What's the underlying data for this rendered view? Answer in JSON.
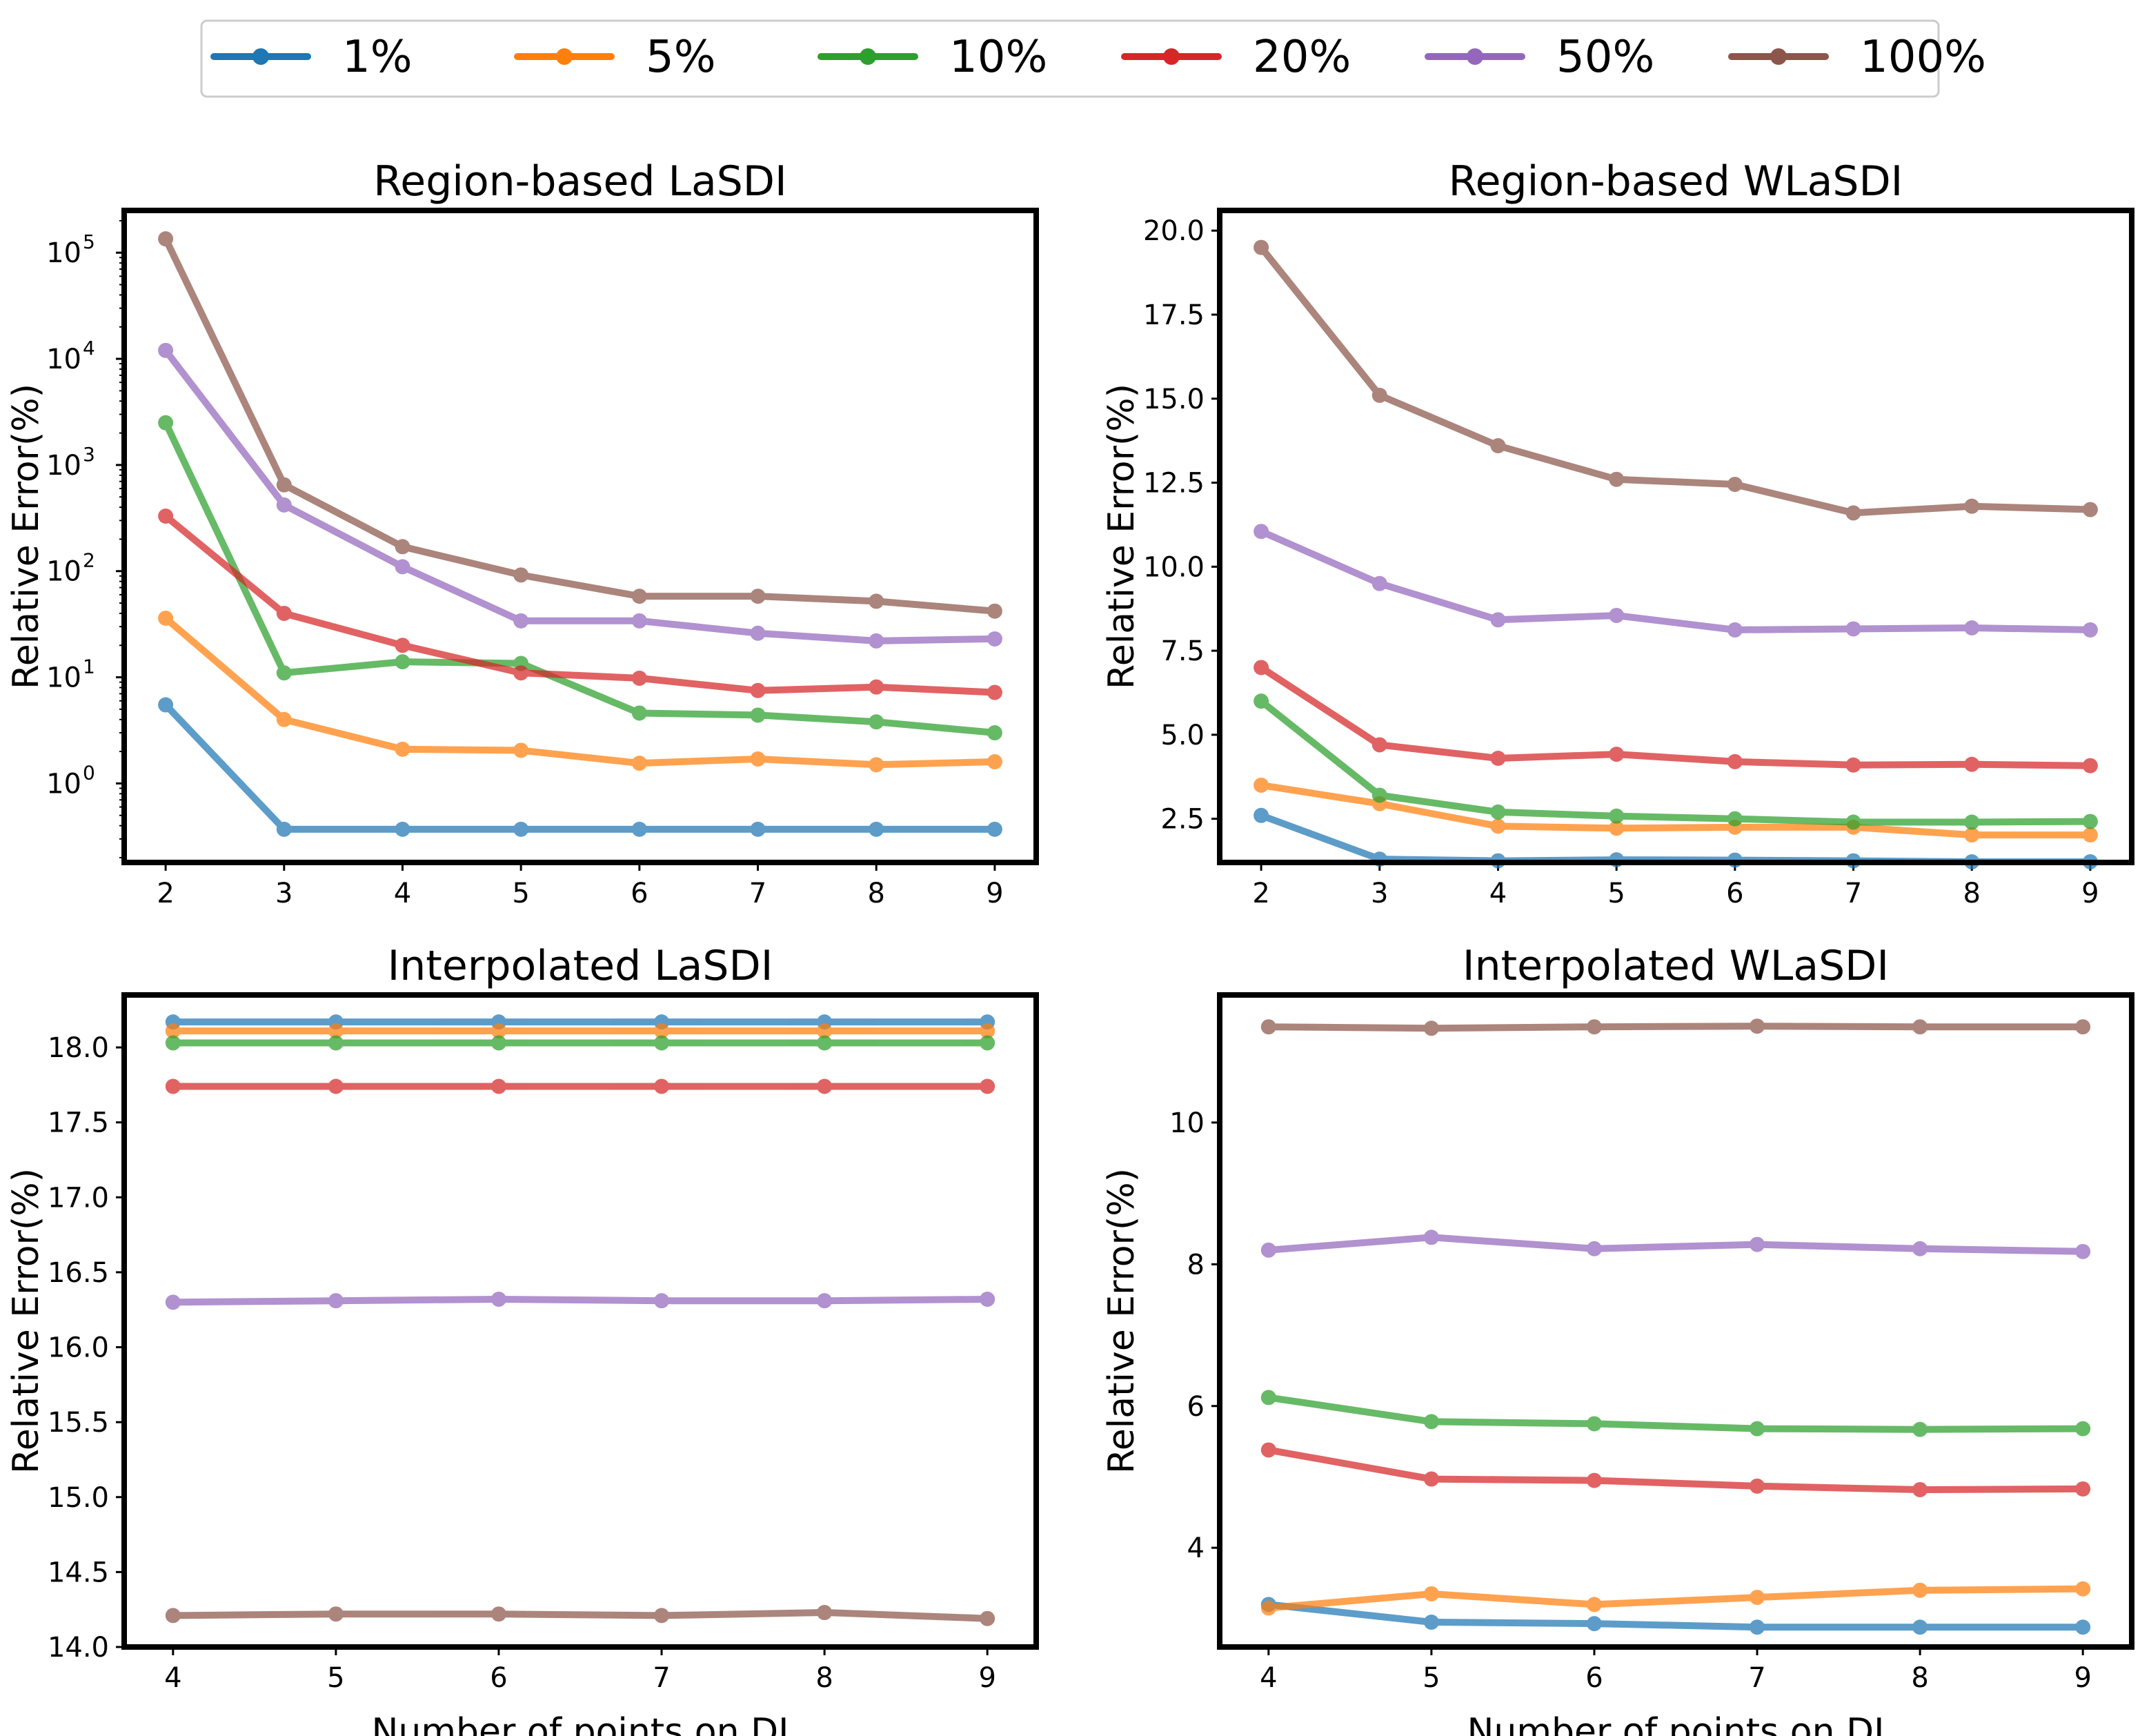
{
  "legend": {
    "entries": [
      "1%",
      "5%",
      "10%",
      "20%",
      "50%",
      "100%"
    ],
    "colors": [
      "#1f77b4",
      "#ff7f0e",
      "#2ca02c",
      "#d62728",
      "#9467bd",
      "#8c564b"
    ]
  },
  "chart_data": [
    {
      "type": "line",
      "title": "Region-based LaSDI",
      "xlabel": "",
      "ylabel": "Relative Error(%)",
      "yscale": "log",
      "ylim": [
        0.18,
        250000
      ],
      "xlim": [
        1.65,
        9.35
      ],
      "xticks": [
        2,
        3,
        4,
        5,
        6,
        7,
        8,
        9
      ],
      "yticks": [
        1,
        10,
        100,
        1000,
        10000,
        100000
      ],
      "yticklabels": [
        {
          "base": "10",
          "exp": "0"
        },
        {
          "base": "10",
          "exp": "1"
        },
        {
          "base": "10",
          "exp": "2"
        },
        {
          "base": "10",
          "exp": "3"
        },
        {
          "base": "10",
          "exp": "4"
        },
        {
          "base": "10",
          "exp": "5"
        }
      ],
      "x": [
        2,
        3,
        4,
        5,
        6,
        7,
        8,
        9
      ],
      "series": [
        {
          "name": "1%",
          "values": [
            5.5,
            0.37,
            0.37,
            0.37,
            0.37,
            0.37,
            0.37,
            0.37
          ]
        },
        {
          "name": "5%",
          "values": [
            36,
            4.0,
            2.1,
            2.05,
            1.55,
            1.7,
            1.5,
            1.6
          ]
        },
        {
          "name": "10%",
          "values": [
            2500,
            11,
            14,
            13.5,
            4.6,
            4.4,
            3.8,
            3.0
          ]
        },
        {
          "name": "20%",
          "values": [
            330,
            40,
            20,
            11,
            9.8,
            7.5,
            8.1,
            7.2
          ]
        },
        {
          "name": "50%",
          "values": [
            12000,
            420,
            110,
            34,
            34,
            26,
            22,
            23
          ]
        },
        {
          "name": "100%",
          "values": [
            135000,
            650,
            170,
            92,
            58,
            58,
            52,
            42
          ]
        }
      ]
    },
    {
      "type": "line",
      "title": "Region-based WLaSDI",
      "xlabel": "",
      "ylabel": "Relative Error(%)",
      "yscale": "linear",
      "ylim": [
        1.2,
        20.6
      ],
      "xlim": [
        1.65,
        9.35
      ],
      "xticks": [
        2,
        3,
        4,
        5,
        6,
        7,
        8,
        9
      ],
      "yticks": [
        2.5,
        5.0,
        7.5,
        10.0,
        12.5,
        15.0,
        17.5,
        20.0
      ],
      "yticklabels": [
        "2.5",
        "5.0",
        "7.5",
        "10.0",
        "12.5",
        "15.0",
        "17.5",
        "20.0"
      ],
      "x": [
        2,
        3,
        4,
        5,
        6,
        7,
        8,
        9
      ],
      "series": [
        {
          "name": "1%",
          "values": [
            2.6,
            1.3,
            1.25,
            1.28,
            1.27,
            1.25,
            1.22,
            1.22
          ]
        },
        {
          "name": "5%",
          "values": [
            3.5,
            2.95,
            2.28,
            2.22,
            2.25,
            2.25,
            2.02,
            2.02
          ]
        },
        {
          "name": "10%",
          "values": [
            6.0,
            3.2,
            2.7,
            2.58,
            2.5,
            2.4,
            2.4,
            2.42
          ]
        },
        {
          "name": "20%",
          "values": [
            7.0,
            4.7,
            4.3,
            4.42,
            4.2,
            4.1,
            4.12,
            4.08
          ]
        },
        {
          "name": "50%",
          "values": [
            11.05,
            9.5,
            8.42,
            8.55,
            8.12,
            8.15,
            8.18,
            8.12
          ]
        },
        {
          "name": "100%",
          "values": [
            19.5,
            15.1,
            13.6,
            12.6,
            12.45,
            11.6,
            11.8,
            11.7
          ]
        }
      ]
    },
    {
      "type": "line",
      "title": "Interpolated LaSDI",
      "xlabel": "Number of points on DI",
      "ylabel": "Relative Error(%)",
      "yscale": "linear",
      "ylim": [
        14.0,
        18.35
      ],
      "xlim": [
        3.7,
        9.3
      ],
      "xticks": [
        4,
        5,
        6,
        7,
        8,
        9
      ],
      "yticks": [
        14.0,
        14.5,
        15.0,
        15.5,
        16.0,
        16.5,
        17.0,
        17.5,
        18.0
      ],
      "yticklabels": [
        "14.0",
        "14.5",
        "15.0",
        "15.5",
        "16.0",
        "16.5",
        "17.0",
        "17.5",
        "18.0"
      ],
      "x": [
        4,
        5,
        6,
        7,
        8,
        9
      ],
      "series": [
        {
          "name": "1%",
          "values": [
            18.17,
            18.17,
            18.17,
            18.17,
            18.17,
            18.17
          ]
        },
        {
          "name": "5%",
          "values": [
            18.11,
            18.11,
            18.11,
            18.11,
            18.11,
            18.11
          ]
        },
        {
          "name": "10%",
          "values": [
            18.03,
            18.03,
            18.03,
            18.03,
            18.03,
            18.03
          ]
        },
        {
          "name": "20%",
          "values": [
            17.74,
            17.74,
            17.74,
            17.74,
            17.74,
            17.74
          ]
        },
        {
          "name": "50%",
          "values": [
            16.3,
            16.31,
            16.32,
            16.31,
            16.31,
            16.32
          ]
        },
        {
          "name": "100%",
          "values": [
            14.21,
            14.22,
            14.22,
            14.21,
            14.23,
            14.19
          ]
        }
      ]
    },
    {
      "type": "line",
      "title": "Interpolated WLaSDI",
      "xlabel": "Number of points on DI",
      "ylabel": "Relative Error(%)",
      "yscale": "linear",
      "ylim": [
        2.6,
        11.8
      ],
      "xlim": [
        3.7,
        9.3
      ],
      "xticks": [
        4,
        5,
        6,
        7,
        8,
        9
      ],
      "yticks": [
        4,
        6,
        8,
        10
      ],
      "yticklabels": [
        "4",
        "6",
        "8",
        "10"
      ],
      "x": [
        4,
        5,
        6,
        7,
        8,
        9
      ],
      "series": [
        {
          "name": "1%",
          "values": [
            3.2,
            2.95,
            2.93,
            2.88,
            2.88,
            2.88
          ]
        },
        {
          "name": "5%",
          "values": [
            3.15,
            3.35,
            3.2,
            3.3,
            3.4,
            3.42
          ]
        },
        {
          "name": "10%",
          "values": [
            6.12,
            5.78,
            5.75,
            5.68,
            5.67,
            5.68
          ]
        },
        {
          "name": "20%",
          "values": [
            5.38,
            4.97,
            4.95,
            4.87,
            4.82,
            4.83
          ]
        },
        {
          "name": "50%",
          "values": [
            8.2,
            8.38,
            8.22,
            8.28,
            8.22,
            8.18
          ]
        },
        {
          "name": "100%",
          "values": [
            11.35,
            11.33,
            11.35,
            11.36,
            11.35,
            11.35
          ]
        }
      ]
    }
  ]
}
